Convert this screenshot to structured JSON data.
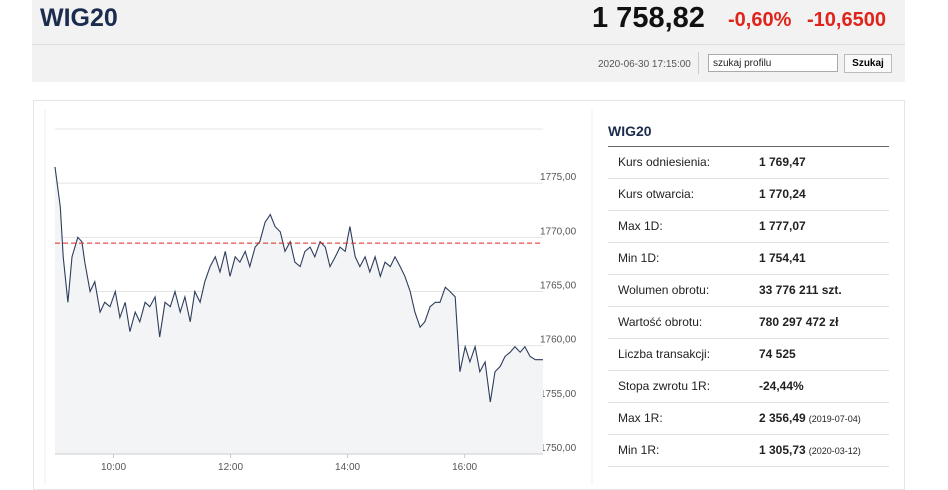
{
  "header": {
    "title": "WIG20",
    "price": "1 758,82",
    "change_pct": "-0,60%",
    "change_abs": "-10,6500",
    "datetime": "2020-06-30 17:15:00",
    "search_placeholder": "szukaj profilu",
    "search_button": "Szukaj"
  },
  "chart_data": {
    "type": "line",
    "x": [
      9.0,
      9.09,
      9.14,
      9.22,
      9.29,
      9.39,
      9.46,
      9.51,
      9.6,
      9.68,
      9.77,
      9.85,
      9.94,
      10.03,
      10.11,
      10.2,
      10.28,
      10.37,
      10.45,
      10.54,
      10.62,
      10.71,
      10.79,
      10.88,
      10.97,
      11.05,
      11.14,
      11.22,
      11.31,
      11.39,
      11.48,
      11.56,
      11.65,
      11.74,
      11.82,
      11.91,
      11.99,
      12.08,
      12.16,
      12.25,
      12.33,
      12.42,
      12.5,
      12.59,
      12.68,
      12.76,
      12.85,
      12.93,
      13.02,
      13.1,
      13.19,
      13.27,
      13.36,
      13.44,
      13.53,
      13.62,
      13.7,
      13.79,
      13.87,
      13.96,
      14.04,
      14.13,
      14.21,
      14.3,
      14.38,
      14.47,
      14.56,
      14.64,
      14.73,
      14.81,
      14.9,
      14.98,
      15.07,
      15.15,
      15.24,
      15.32,
      15.41,
      15.5,
      15.58,
      15.67,
      15.75,
      15.84,
      15.92,
      16.01,
      16.09,
      16.18,
      16.26,
      16.35,
      16.44,
      16.52,
      16.61,
      16.69,
      16.78,
      16.86,
      16.95,
      17.03,
      17.12,
      17.21,
      17.34
    ],
    "series": [
      {
        "color": "#2e3d5c",
        "values": [
          1776.5,
          1772.8,
          1768.2,
          1764.0,
          1768.2,
          1770.0,
          1769.6,
          1767.7,
          1765.0,
          1765.9,
          1763.1,
          1764.0,
          1763.6,
          1765.0,
          1762.6,
          1764.0,
          1761.3,
          1763.1,
          1762.2,
          1764.0,
          1763.6,
          1764.5,
          1760.8,
          1764.0,
          1763.6,
          1765.0,
          1763.1,
          1764.5,
          1762.2,
          1765.0,
          1764.0,
          1765.9,
          1767.3,
          1768.2,
          1766.8,
          1768.7,
          1766.4,
          1768.2,
          1767.7,
          1768.7,
          1767.3,
          1769.1,
          1769.6,
          1771.4,
          1772.1,
          1771.0,
          1770.5,
          1768.7,
          1769.6,
          1767.7,
          1767.3,
          1768.7,
          1769.1,
          1768.2,
          1769.6,
          1769.1,
          1767.3,
          1768.2,
          1769.1,
          1768.7,
          1771.0,
          1768.2,
          1767.3,
          1768.2,
          1766.8,
          1768.2,
          1766.4,
          1767.7,
          1767.3,
          1768.2,
          1767.3,
          1766.4,
          1765.0,
          1763.1,
          1761.7,
          1762.2,
          1763.6,
          1764.0,
          1764.0,
          1765.4,
          1765.0,
          1764.5,
          1757.6,
          1759.9,
          1758.5,
          1759.9,
          1757.6,
          1758.5,
          1754.8,
          1757.6,
          1758.1,
          1759.0,
          1759.4,
          1759.9,
          1759.4,
          1759.9,
          1759.0,
          1758.7,
          1758.7
        ]
      }
    ],
    "reference_line": 1769.47,
    "reference_color": "#e0231b",
    "xlim": [
      9,
      17.34
    ],
    "xticks": [
      {
        "value": 10,
        "label": "10:00"
      },
      {
        "value": 12,
        "label": "12:00"
      },
      {
        "value": 14,
        "label": "14:00"
      },
      {
        "value": 16,
        "label": "16:00"
      }
    ],
    "ylim": [
      1750,
      1780
    ],
    "yticks": [
      {
        "value": 1750,
        "label": "1750,00"
      },
      {
        "value": 1755,
        "label": "1755,00"
      },
      {
        "value": 1760,
        "label": "1760,00"
      },
      {
        "value": 1765,
        "label": "1765,00"
      },
      {
        "value": 1770,
        "label": "1770,00"
      },
      {
        "value": 1775,
        "label": "1775,00"
      }
    ],
    "grid": true
  },
  "stats": {
    "title": "WIG20",
    "rows": [
      {
        "label": "Kurs odniesienia:",
        "value": "1 769,47"
      },
      {
        "label": "Kurs otwarcia:",
        "value": "1 770,24"
      },
      {
        "label": "Max 1D:",
        "value": "1 777,07"
      },
      {
        "label": "Min 1D:",
        "value": "1 754,41"
      },
      {
        "label": "Wolumen obrotu:",
        "value": "33 776 211 szt."
      },
      {
        "label": "Wartość obrotu:",
        "value": "780 297 472 zł"
      },
      {
        "label": "Liczba transakcji:",
        "value": "74 525"
      },
      {
        "label": "Stopa zwrotu 1R:",
        "value": "-24,44%"
      },
      {
        "label": "Max 1R:",
        "value": "2 356,49",
        "note": "(2019-07-04)"
      },
      {
        "label": "Min 1R:",
        "value": "1 305,73",
        "note": "(2020-03-12)"
      }
    ]
  }
}
